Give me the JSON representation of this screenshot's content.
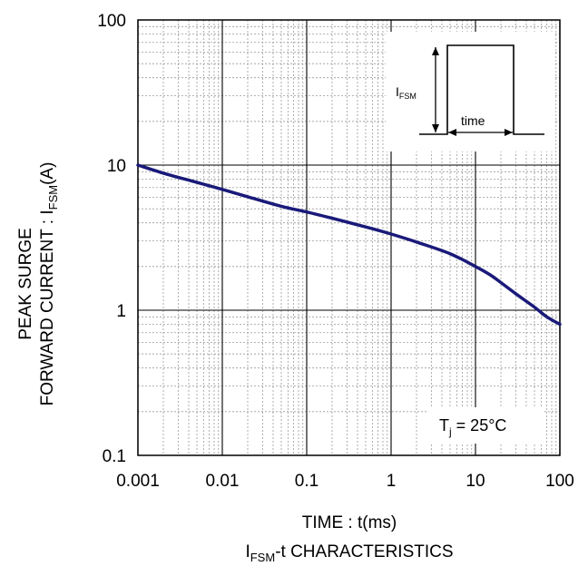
{
  "chart_data": {
    "type": "line",
    "title": "",
    "xlabel": "TIME : t(ms)",
    "ylabel_line1": "PEAK SURGE",
    "ylabel_line2_prefix": "FORWARD CURRENT : I",
    "ylabel_line2_sub": "FSM",
    "ylabel_line2_suffix": "(A)",
    "caption_prefix": "I",
    "caption_sub": "FSM",
    "caption_suffix": "-t CHARACTERISTICS",
    "x_scale": "log",
    "y_scale": "log",
    "xlim": [
      0.001,
      100
    ],
    "ylim": [
      0.1,
      100
    ],
    "xticks": [
      0.001,
      0.01,
      0.1,
      1,
      10,
      100
    ],
    "xtick_labels": [
      "0.001",
      "0.01",
      "0.1",
      "1",
      "10",
      "100"
    ],
    "yticks": [
      0.1,
      1,
      10,
      100
    ],
    "ytick_labels": [
      "0.1",
      "1",
      "10",
      "100"
    ],
    "grid": "major and minor",
    "line_color": "#1a1a7a",
    "series": [
      {
        "x": [
          0.001,
          0.002,
          0.005,
          0.01,
          0.02,
          0.05,
          0.1,
          0.2,
          0.5,
          1,
          2,
          5,
          10,
          15,
          20,
          30,
          50,
          70,
          100
        ],
        "y": [
          10,
          8.8,
          7.6,
          6.8,
          6.05,
          5.2,
          4.75,
          4.3,
          3.75,
          3.35,
          2.95,
          2.45,
          2.0,
          1.75,
          1.55,
          1.3,
          1.05,
          0.9,
          0.8
        ]
      }
    ],
    "annotations": {
      "tj_prefix": "T",
      "tj_sub": "j",
      "tj_suffix": " = 25°C",
      "inset_ifsm_prefix": "I",
      "inset_ifsm_sub": "FSM",
      "inset_time": "time"
    }
  }
}
